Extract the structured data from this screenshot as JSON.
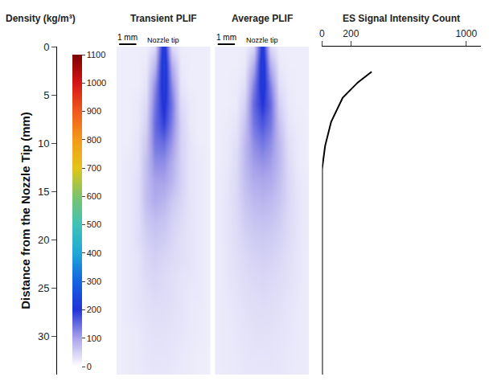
{
  "chart_data": {
    "type": "panels",
    "ylabel": "Distance from the Nozzle Tip (mm)",
    "ylim": [
      34,
      0
    ],
    "yticks": [
      0,
      5,
      10,
      15,
      20,
      25,
      30
    ],
    "colorbar": {
      "title": "Density (kg/m³)",
      "range": [
        0,
        1100
      ],
      "ticks": [
        0,
        100,
        200,
        300,
        400,
        500,
        600,
        700,
        800,
        900,
        1000,
        1100
      ]
    },
    "panels": [
      {
        "type": "heatmap",
        "title": "Transient PLIF",
        "note": "Nozzle tip",
        "scale_bar": {
          "label": "1 mm",
          "length": 1
        },
        "tick_labels": false,
        "xlim": [
          -2.75,
          2.75
        ],
        "x": [
          -2.5,
          -2,
          -1.5,
          -1,
          -0.5,
          0,
          0.5,
          1,
          1.5,
          2,
          2.5
        ],
        "y": [
          0,
          2,
          4,
          6,
          8,
          10,
          12,
          14,
          16,
          18,
          20,
          22,
          24,
          26,
          28,
          30,
          32,
          34
        ],
        "cells": [
          [
            20,
            20,
            20,
            20,
            40,
            230,
            40,
            20,
            20,
            20,
            20
          ],
          [
            20,
            20,
            20,
            25,
            80,
            240,
            90,
            25,
            20,
            20,
            20
          ],
          [
            20,
            20,
            20,
            30,
            120,
            230,
            120,
            30,
            20,
            20,
            20
          ],
          [
            20,
            20,
            25,
            40,
            140,
            210,
            140,
            40,
            25,
            20,
            20
          ],
          [
            20,
            20,
            25,
            50,
            150,
            190,
            130,
            50,
            25,
            20,
            20
          ],
          [
            20,
            20,
            30,
            60,
            140,
            150,
            110,
            50,
            30,
            20,
            20
          ],
          [
            20,
            25,
            30,
            70,
            120,
            120,
            90,
            50,
            30,
            25,
            20
          ],
          [
            20,
            25,
            35,
            70,
            100,
            100,
            80,
            50,
            30,
            25,
            20
          ],
          [
            20,
            25,
            35,
            70,
            90,
            80,
            60,
            45,
            30,
            25,
            20
          ],
          [
            20,
            25,
            35,
            60,
            70,
            65,
            50,
            40,
            30,
            25,
            20
          ],
          [
            20,
            25,
            35,
            50,
            60,
            55,
            45,
            35,
            30,
            25,
            20
          ],
          [
            20,
            25,
            30,
            45,
            50,
            45,
            40,
            35,
            30,
            25,
            20
          ],
          [
            20,
            25,
            30,
            40,
            45,
            40,
            35,
            30,
            28,
            25,
            20
          ],
          [
            20,
            25,
            30,
            35,
            40,
            38,
            35,
            30,
            25,
            25,
            20
          ],
          [
            20,
            25,
            28,
            32,
            35,
            35,
            32,
            30,
            25,
            22,
            20
          ],
          [
            20,
            22,
            25,
            30,
            32,
            32,
            30,
            28,
            25,
            22,
            20
          ],
          [
            20,
            22,
            25,
            28,
            30,
            30,
            28,
            25,
            22,
            20,
            20
          ],
          [
            20,
            22,
            24,
            26,
            28,
            28,
            26,
            24,
            22,
            20,
            20
          ]
        ]
      },
      {
        "type": "heatmap",
        "title": "Average PLIF",
        "note": "Nozzle tip",
        "scale_bar": {
          "label": "1 mm",
          "length": 1
        },
        "tick_labels": false,
        "xlim": [
          -2.75,
          2.75
        ],
        "x": [
          -2.5,
          -2,
          -1.5,
          -1,
          -0.5,
          0,
          0.5,
          1,
          1.5,
          2,
          2.5
        ],
        "y": [
          0,
          2,
          4,
          6,
          8,
          10,
          12,
          14,
          16,
          18,
          20,
          22,
          24,
          26,
          28,
          30,
          32,
          34
        ],
        "cells": [
          [
            20,
            20,
            20,
            20,
            40,
            220,
            40,
            20,
            20,
            20,
            20
          ],
          [
            20,
            20,
            20,
            25,
            90,
            230,
            90,
            25,
            20,
            20,
            20
          ],
          [
            20,
            20,
            22,
            35,
            130,
            220,
            130,
            35,
            22,
            20,
            20
          ],
          [
            20,
            20,
            25,
            50,
            150,
            200,
            150,
            50,
            25,
            20,
            20
          ],
          [
            20,
            22,
            30,
            65,
            140,
            170,
            140,
            65,
            30,
            22,
            20
          ],
          [
            20,
            25,
            35,
            75,
            120,
            140,
            120,
            75,
            35,
            25,
            20
          ],
          [
            20,
            25,
            40,
            75,
            105,
            115,
            105,
            75,
            40,
            25,
            20
          ],
          [
            22,
            28,
            42,
            70,
            90,
            95,
            90,
            70,
            42,
            28,
            22
          ],
          [
            22,
            30,
            42,
            62,
            75,
            80,
            75,
            62,
            42,
            30,
            22
          ],
          [
            22,
            30,
            40,
            55,
            65,
            68,
            65,
            55,
            40,
            30,
            22
          ],
          [
            22,
            30,
            38,
            48,
            55,
            58,
            55,
            48,
            38,
            30,
            22
          ],
          [
            22,
            28,
            35,
            42,
            48,
            50,
            48,
            42,
            35,
            28,
            22
          ],
          [
            22,
            28,
            33,
            38,
            42,
            44,
            42,
            38,
            33,
            28,
            22
          ],
          [
            22,
            26,
            30,
            35,
            38,
            40,
            38,
            35,
            30,
            26,
            22
          ],
          [
            22,
            25,
            28,
            32,
            35,
            36,
            35,
            32,
            28,
            25,
            22
          ],
          [
            22,
            24,
            27,
            30,
            32,
            33,
            32,
            30,
            27,
            24,
            22
          ],
          [
            22,
            24,
            26,
            28,
            30,
            30,
            30,
            28,
            26,
            24,
            22
          ],
          [
            22,
            23,
            25,
            27,
            28,
            28,
            28,
            27,
            25,
            23,
            22
          ]
        ]
      },
      {
        "type": "line",
        "title": "ES Signal Intensity Count",
        "color": "#000000",
        "xlim": [
          0,
          1100
        ],
        "xticks": [
          0,
          200,
          1000
        ],
        "x": [
          344,
          249,
          143,
          63,
          21,
          0,
          0
        ],
        "y": [
          2.6,
          3.7,
          5.3,
          7.8,
          10.3,
          12.7,
          34
        ]
      }
    ]
  }
}
